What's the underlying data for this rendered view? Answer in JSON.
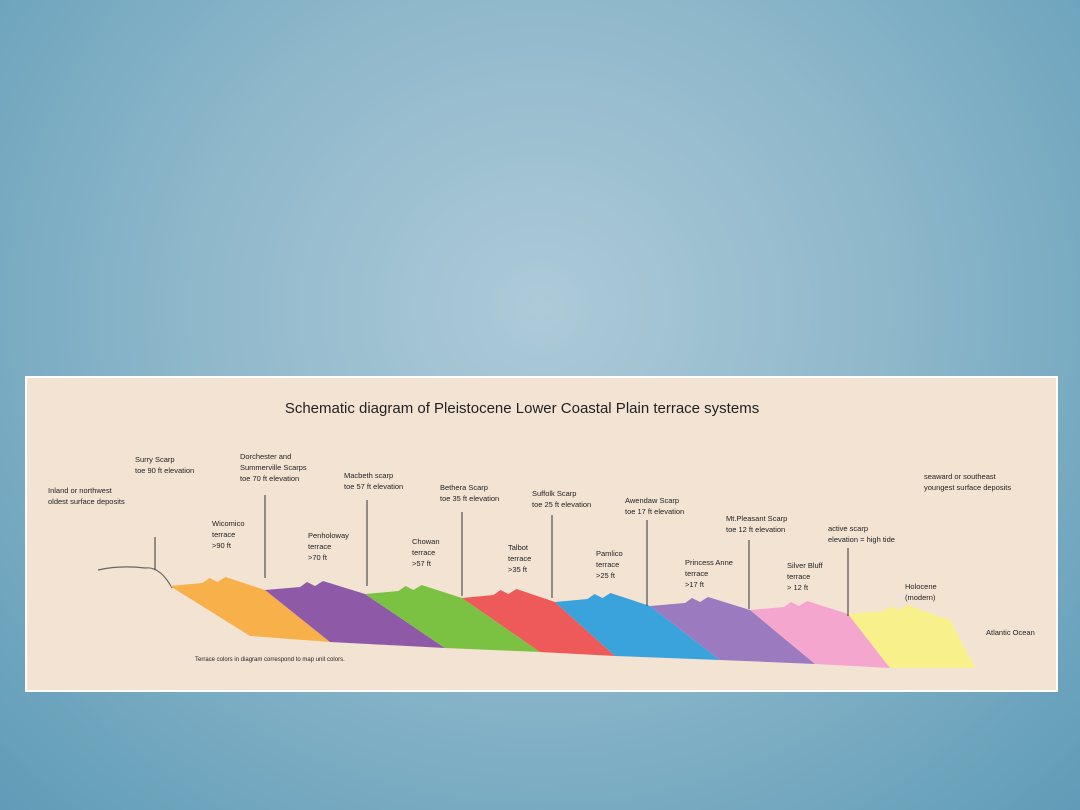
{
  "diagram": {
    "title": "Schematic diagram of Pleistocene Lower Coastal Plain terrace systems",
    "inland": [
      "Inland or northwest",
      "oldest surface deposits"
    ],
    "seaward": [
      "seaward or southeast",
      "youngest surface deposits"
    ],
    "scarps": [
      {
        "lines": [
          "Surry Scarp",
          "toe 90 ft elevation"
        ]
      },
      {
        "lines": [
          "Dorchester and",
          "Summerville Scarps",
          "toe 70 ft elevation"
        ]
      },
      {
        "lines": [
          "Macbeth scarp",
          "toe 57 ft elevation"
        ]
      },
      {
        "lines": [
          "Bethera Scarp",
          "toe 35 ft elevation"
        ]
      },
      {
        "lines": [
          "Suffolk Scarp",
          "toe 25 ft elevation"
        ]
      },
      {
        "lines": [
          "Awendaw Scarp",
          "toe 17 ft elevation"
        ]
      },
      {
        "lines": [
          "Mt.Pleasant Scarp",
          "toe 12 ft elevation"
        ]
      },
      {
        "lines": [
          "active scarp",
          "elevation = high tide"
        ]
      }
    ],
    "terraces": [
      {
        "lines": [
          "Wicomico",
          "terrace",
          ">90 ft"
        ]
      },
      {
        "lines": [
          "Penholoway",
          "terrace",
          ">70 ft"
        ]
      },
      {
        "lines": [
          "Chowan",
          "terrace",
          ">57 ft"
        ]
      },
      {
        "lines": [
          "Talbot",
          "terrace",
          ">35 ft"
        ]
      },
      {
        "lines": [
          "Pamlico",
          "terrace",
          ">25 ft"
        ]
      },
      {
        "lines": [
          "Princess Anne",
          "terrace",
          ">17 ft"
        ]
      },
      {
        "lines": [
          "Silver Bluff",
          "terrace",
          "> 12 ft"
        ]
      },
      {
        "lines": [
          "Holocene",
          "(modern)"
        ]
      }
    ],
    "ocean": "Atlantic Ocean",
    "note": "Terrace colors in diagram correspond to map unit colors."
  }
}
